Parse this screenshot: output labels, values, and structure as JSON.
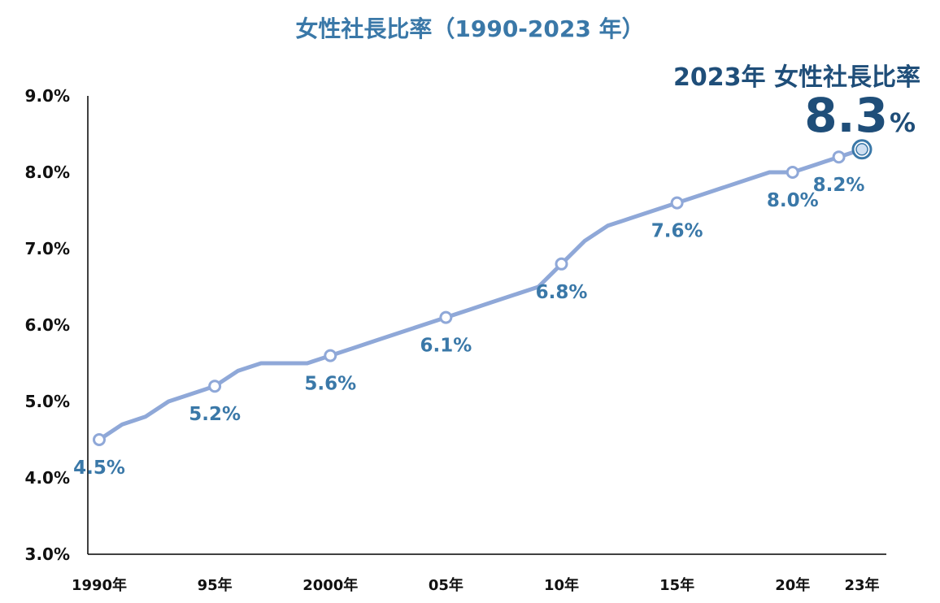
{
  "chart_data": {
    "type": "line",
    "title": "女性社長比率（1990-2023 年）",
    "xlabel": "",
    "ylabel": "",
    "ylim": [
      3.0,
      9.0
    ],
    "yticks": [
      "3.0%",
      "4.0%",
      "5.0%",
      "6.0%",
      "7.0%",
      "8.0%",
      "9.0%"
    ],
    "xticks": [
      {
        "year": 1990,
        "label": "1990年"
      },
      {
        "year": 1995,
        "label": "95年"
      },
      {
        "year": 2000,
        "label": "2000年"
      },
      {
        "year": 2005,
        "label": "05年"
      },
      {
        "year": 2010,
        "label": "10年"
      },
      {
        "year": 2015,
        "label": "15年"
      },
      {
        "year": 2020,
        "label": "20年"
      },
      {
        "year": 2023,
        "label": "23年"
      }
    ],
    "grid": false,
    "line_color": "#8fa8d8",
    "label_color": "#3a78a8",
    "series": [
      {
        "x": [
          1990,
          1991,
          1992,
          1993,
          1994,
          1995,
          1996,
          1997,
          1998,
          1999,
          2000,
          2001,
          2002,
          2003,
          2004,
          2005,
          2006,
          2007,
          2008,
          2009,
          2010,
          2011,
          2012,
          2013,
          2014,
          2015,
          2016,
          2017,
          2018,
          2019,
          2020,
          2021,
          2022,
          2023
        ],
        "values": [
          4.5,
          4.7,
          4.8,
          5.0,
          5.1,
          5.2,
          5.4,
          5.5,
          5.5,
          5.5,
          5.6,
          5.7,
          5.8,
          5.9,
          6.0,
          6.1,
          6.2,
          6.3,
          6.4,
          6.5,
          6.8,
          7.1,
          7.3,
          7.4,
          7.5,
          7.6,
          7.7,
          7.8,
          7.9,
          8.0,
          8.0,
          8.1,
          8.2,
          8.3
        ]
      }
    ],
    "annotations": [
      {
        "year": 1990,
        "label": "4.5%"
      },
      {
        "year": 1995,
        "label": "5.2%"
      },
      {
        "year": 2000,
        "label": "5.6%"
      },
      {
        "year": 2005,
        "label": "6.1%"
      },
      {
        "year": 2010,
        "label": "6.8%"
      },
      {
        "year": 2015,
        "label": "7.6%"
      },
      {
        "year": 2020,
        "label": "8.0%"
      },
      {
        "year": 2022,
        "label": "8.2%"
      }
    ],
    "highlight": {
      "year": 2023,
      "heading": "2023年 女性社長比率",
      "value": "8.3",
      "unit": "%"
    }
  }
}
